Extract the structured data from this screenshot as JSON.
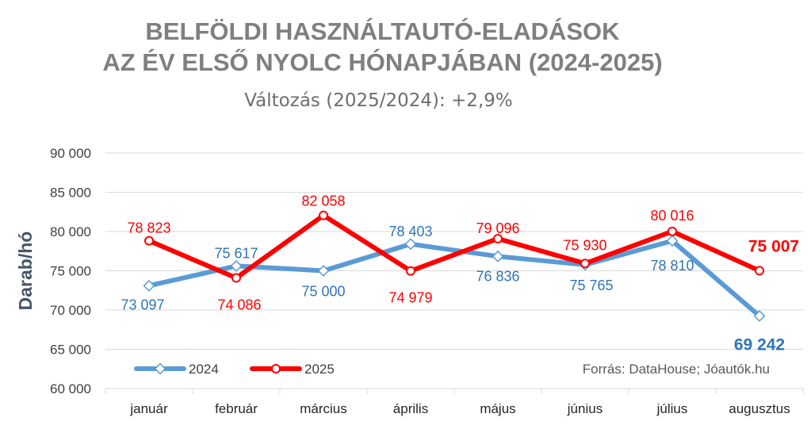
{
  "title_line1": "BELFÖLDI HASZNÁLTAUTÓ-ELADÁSOK",
  "title_line2": "AZ ÉV ELSŐ NYOLC HÓNAPJÁBAN (2024-2025)",
  "subtitle": "Változás (2025/2024): +2,9%",
  "source": "Forrás: DataHouse; Jóautók.hu",
  "colors": {
    "series_2024": "#5b9bd5",
    "series_2025": "#ff0000",
    "label_2024": "#2e75b6",
    "label_2025": "#ff0000",
    "axis_text": "#404040",
    "grid": "#d9d9d9"
  },
  "chart_data": {
    "type": "line",
    "ylabel": "Darab/hó",
    "ylim": [
      60000,
      90000
    ],
    "yticks": [
      "60 000",
      "65 000",
      "70 000",
      "75 000",
      "80 000",
      "85 000",
      "90 000"
    ],
    "grid": true,
    "legend": "bottom-left",
    "categories": [
      "január",
      "február",
      "március",
      "április",
      "május",
      "június",
      "július",
      "augusztus"
    ],
    "series": [
      {
        "name": "2024",
        "values": [
          73097,
          75617,
          75000,
          78403,
          76836,
          75765,
          78810,
          69242
        ],
        "labels": [
          "73 097",
          "75 617",
          "75 000",
          "78 403",
          "76 836",
          "75 765",
          "78 810",
          "69 242"
        ]
      },
      {
        "name": "2025",
        "values": [
          78823,
          74086,
          82058,
          74979,
          79096,
          75930,
          80016,
          75007
        ],
        "labels": [
          "78 823",
          "74 086",
          "82 058",
          "74 979",
          "79 096",
          "75 930",
          "80 016",
          "75 007"
        ]
      }
    ]
  }
}
